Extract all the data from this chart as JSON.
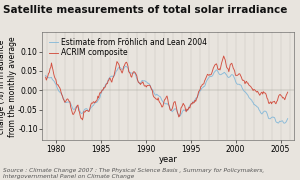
{
  "title": "Satellite measurements of total solar irradiance",
  "xlabel": "year",
  "ylabel": "change (%) in irradiance\nfrom the monthly average",
  "xlim": [
    1978.5,
    2006.5
  ],
  "ylim": [
    -0.13,
    0.15
  ],
  "yticks": [
    -0.1,
    -0.05,
    0.0,
    0.05,
    0.1
  ],
  "xticks": [
    1980,
    1985,
    1990,
    1995,
    2000,
    2005
  ],
  "color_frohlich": "#85B8D8",
  "color_acrim": "#D04030",
  "legend_frohlich": "Estimate from Fröhlich and Lean 2004",
  "legend_acrim": "ACRIM composite",
  "source_text": "Source : Climate Change 2007 : The Physical Science Basis , Summary for Policymakers,\nIntergovernmental Panel on Climate Change",
  "bg_color": "#e8e4de",
  "title_fontsize": 7.5,
  "axis_fontsize": 6.0,
  "tick_fontsize": 5.5,
  "legend_fontsize": 5.5,
  "source_fontsize": 4.2
}
